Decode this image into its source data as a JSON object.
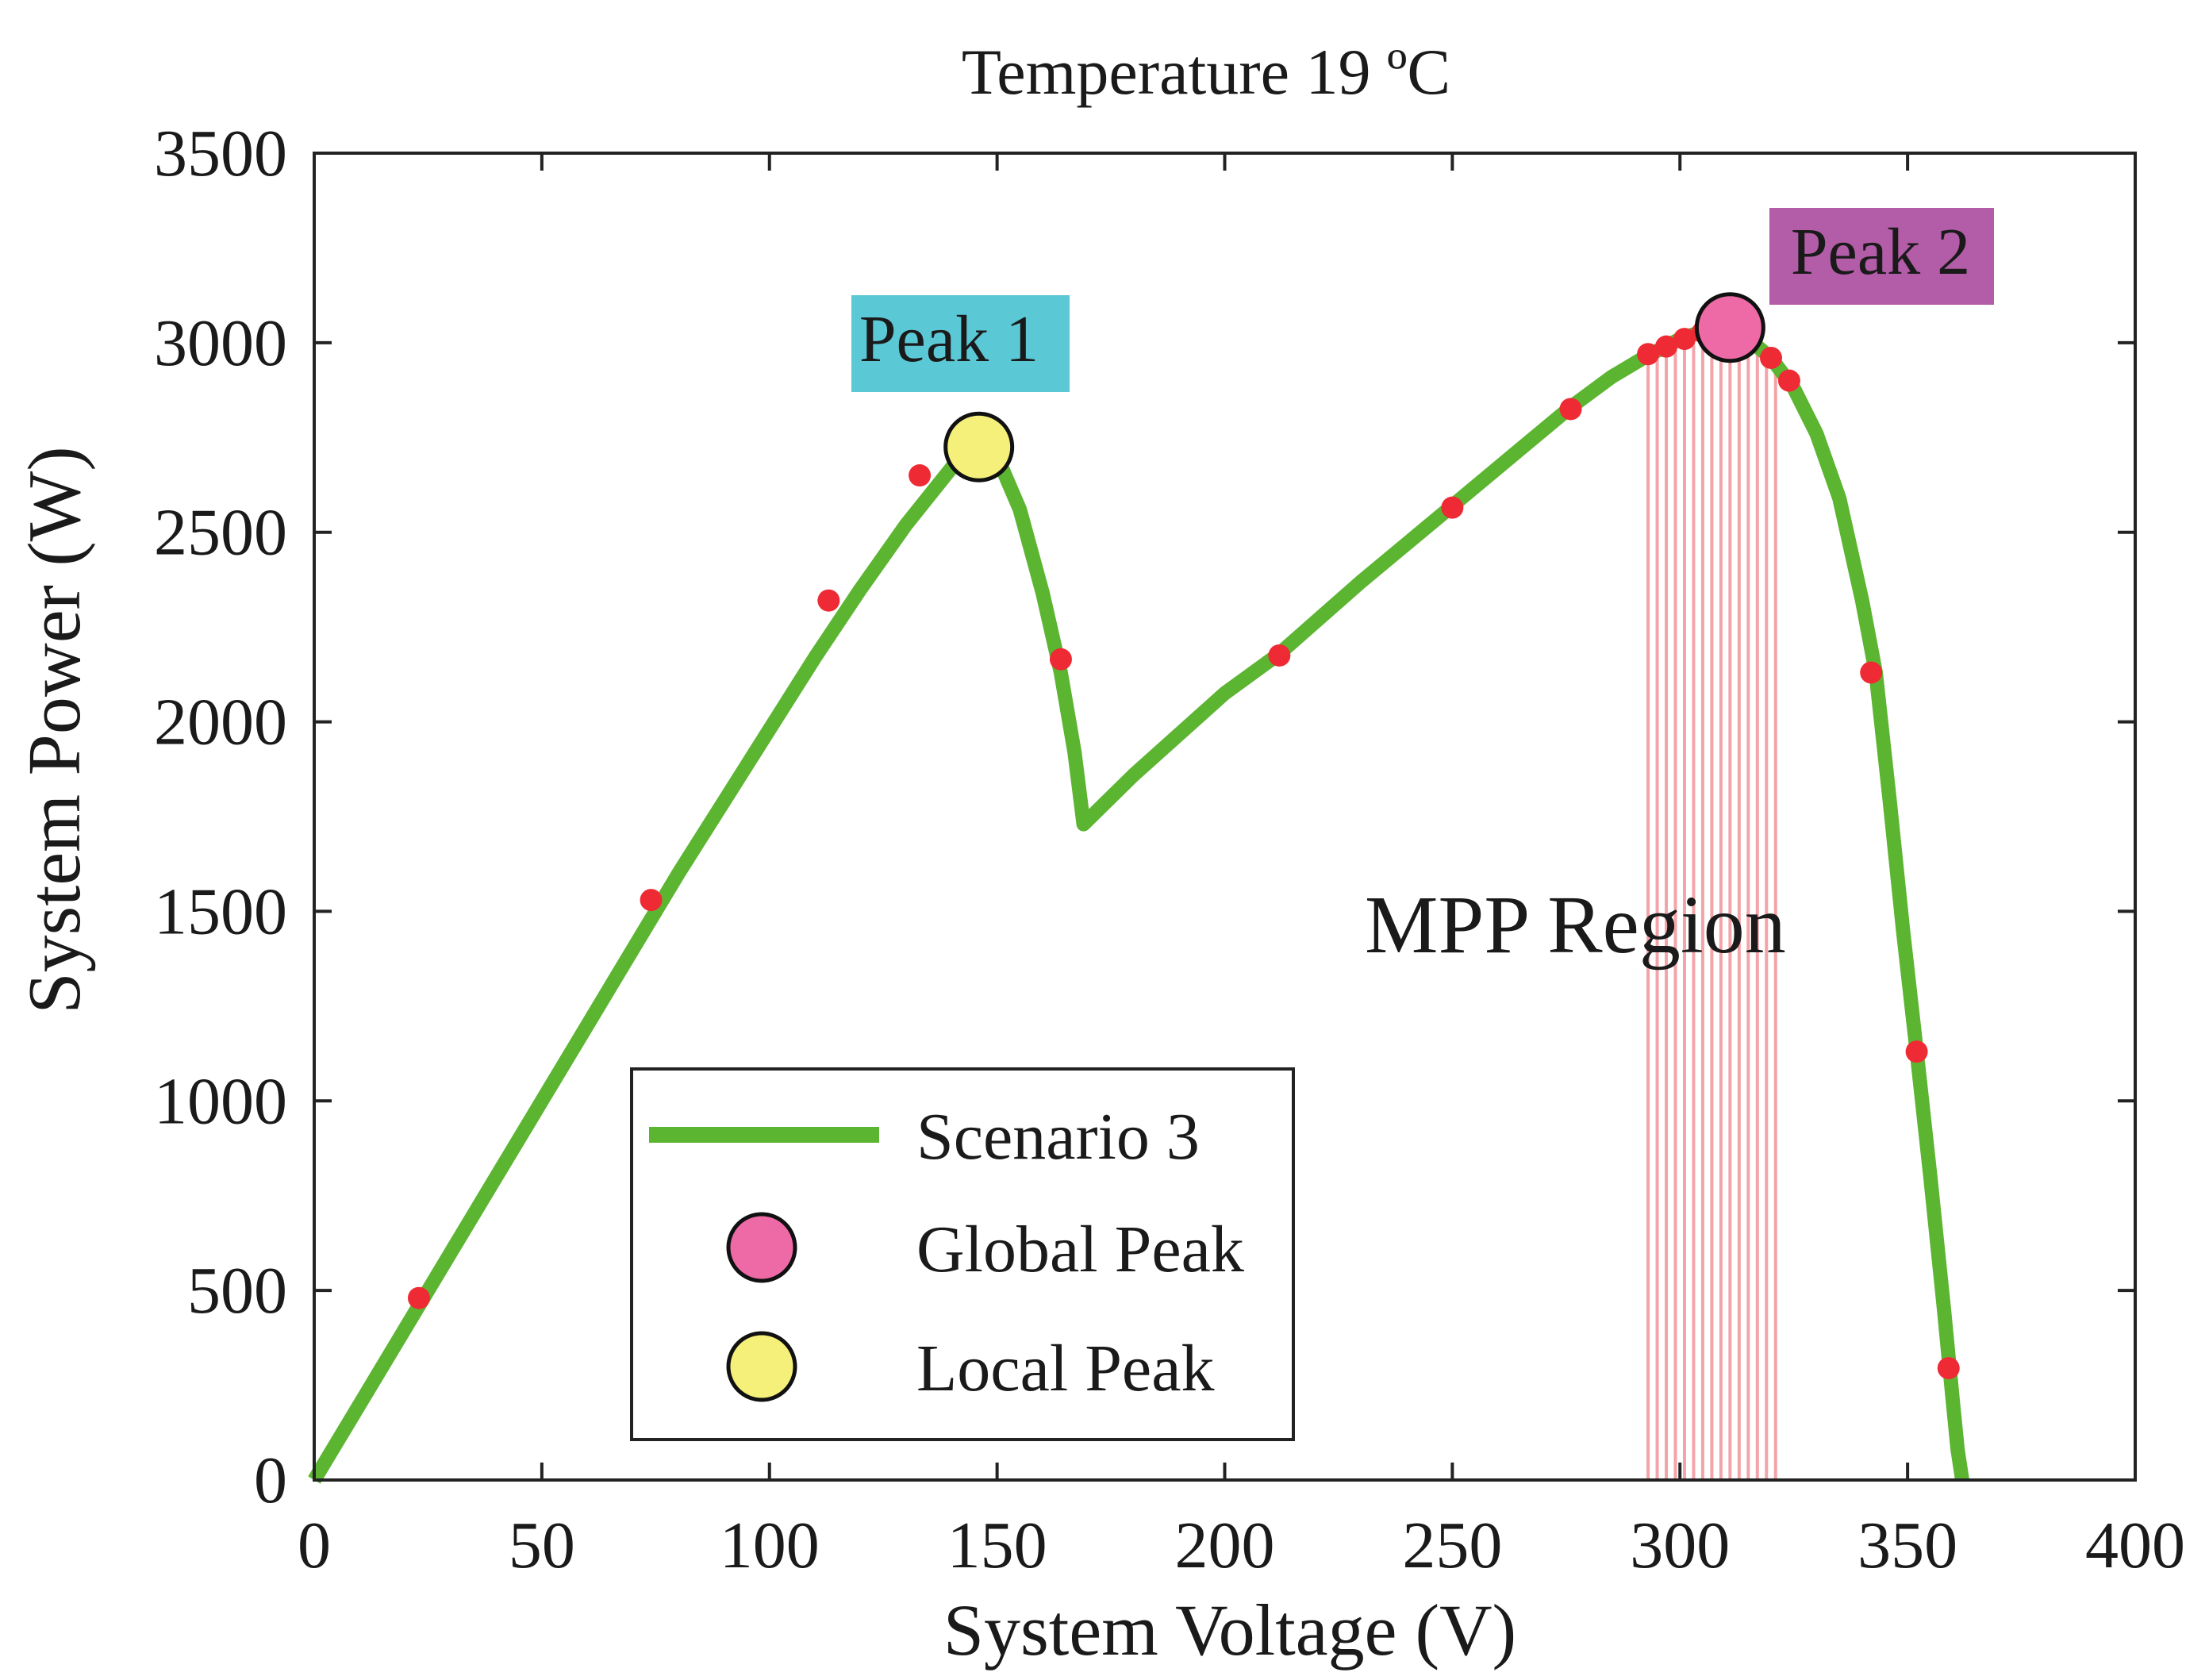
{
  "chart_data": {
    "type": "line",
    "title": "Temperature 19 ºC",
    "xlabel": "System Voltage (V)",
    "ylabel": "System Power  (W)",
    "xlim": [
      0,
      400
    ],
    "ylim": [
      0,
      3500
    ],
    "xticks": [
      "0",
      "50",
      "100",
      "150",
      "200",
      "250",
      "300",
      "350",
      "400"
    ],
    "yticks": [
      "0",
      "500",
      "1000",
      "1500",
      "2000",
      "2500",
      "3000",
      "3500"
    ],
    "series": [
      {
        "name": "Scenario 3",
        "color": "#5cb531",
        "points": [
          [
            0,
            0
          ],
          [
            10,
            200
          ],
          [
            20,
            400
          ],
          [
            30,
            600
          ],
          [
            40,
            800
          ],
          [
            50,
            1000
          ],
          [
            60,
            1200
          ],
          [
            70,
            1400
          ],
          [
            80,
            1600
          ],
          [
            90,
            1790
          ],
          [
            100,
            1980
          ],
          [
            110,
            2170
          ],
          [
            120,
            2350
          ],
          [
            130,
            2520
          ],
          [
            140,
            2670
          ],
          [
            145,
            2720
          ],
          [
            150,
            2700
          ],
          [
            155,
            2560
          ],
          [
            160,
            2340
          ],
          [
            164,
            2130
          ],
          [
            167,
            1920
          ],
          [
            169,
            1730
          ],
          [
            180,
            1860
          ],
          [
            200,
            2075
          ],
          [
            212,
            2180
          ],
          [
            230,
            2370
          ],
          [
            250,
            2570
          ],
          [
            265,
            2720
          ],
          [
            276,
            2830
          ],
          [
            285,
            2910
          ],
          [
            292,
            2960
          ],
          [
            300,
            3010
          ],
          [
            305,
            3030
          ],
          [
            310,
            3030
          ],
          [
            315,
            3010
          ],
          [
            320,
            2960
          ],
          [
            325,
            2880
          ],
          [
            330,
            2760
          ],
          [
            335,
            2590
          ],
          [
            340,
            2320
          ],
          [
            343,
            2130
          ],
          [
            346,
            1800
          ],
          [
            349,
            1450
          ],
          [
            352,
            1130
          ],
          [
            355,
            800
          ],
          [
            358,
            450
          ],
          [
            360,
            200
          ],
          [
            361,
            80
          ],
          [
            362,
            0
          ]
        ]
      }
    ],
    "sample_points": [
      [
        23,
        480
      ],
      [
        74,
        1530
      ],
      [
        113,
        2320
      ],
      [
        133,
        2650
      ],
      [
        164,
        2165
      ],
      [
        212,
        2175
      ],
      [
        250,
        2565
      ],
      [
        276,
        2825
      ],
      [
        293,
        2970
      ],
      [
        297,
        2990
      ],
      [
        301,
        3010
      ],
      [
        305,
        3028
      ],
      [
        315,
        3010
      ],
      [
        320,
        2960
      ],
      [
        324,
        2900
      ],
      [
        342,
        2130
      ],
      [
        352,
        1130
      ],
      [
        359,
        295
      ]
    ],
    "mpp_region_lines": [
      293,
      295,
      297,
      299,
      301,
      303,
      305,
      307,
      309,
      311,
      313,
      315,
      317,
      319,
      321
    ],
    "mpp_region_label": "MPP Region",
    "global_peak": {
      "x": 311,
      "y": 3040,
      "color": "#ee6aa7"
    },
    "local_peak": {
      "x": 146,
      "y": 2725,
      "color": "#f5f07a"
    },
    "annotations": [
      {
        "text": "Peak 1",
        "background": "#5bc8d6",
        "target": "local_peak"
      },
      {
        "text": "Peak 2",
        "background": "#b35ca8",
        "target": "global_peak"
      }
    ],
    "legend": {
      "position": "bottom-left",
      "entries": [
        {
          "label": "Scenario 3",
          "marker": "line",
          "color": "#5cb531"
        },
        {
          "label": "Global Peak",
          "marker": "circle",
          "color": "#ee6aa7"
        },
        {
          "label": "Local Peak",
          "marker": "circle",
          "color": "#f5f07a"
        }
      ]
    },
    "grid": false
  }
}
